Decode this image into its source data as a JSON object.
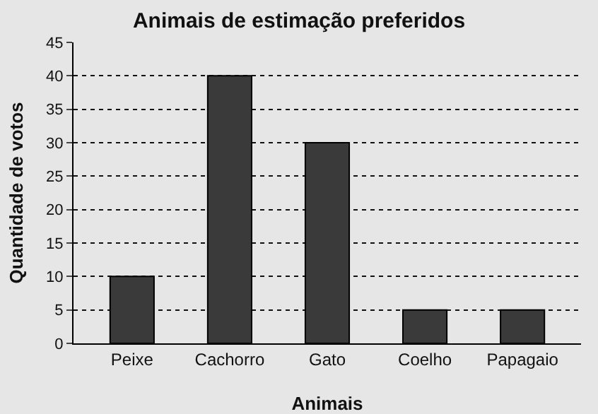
{
  "chart_data": {
    "type": "bar",
    "title": "Animais de estimação preferidos",
    "xlabel": "Animais",
    "ylabel": "Quantidade de votos",
    "categories": [
      "Peixe",
      "Cachorro",
      "Gato",
      "Coelho",
      "Papagaio"
    ],
    "values": [
      10,
      40,
      30,
      5,
      5
    ],
    "color": "#3a3a3a",
    "ylim": [
      0,
      45
    ],
    "yticks": [
      0,
      5,
      10,
      15,
      20,
      25,
      30,
      35,
      40,
      45
    ],
    "grid": "y"
  }
}
